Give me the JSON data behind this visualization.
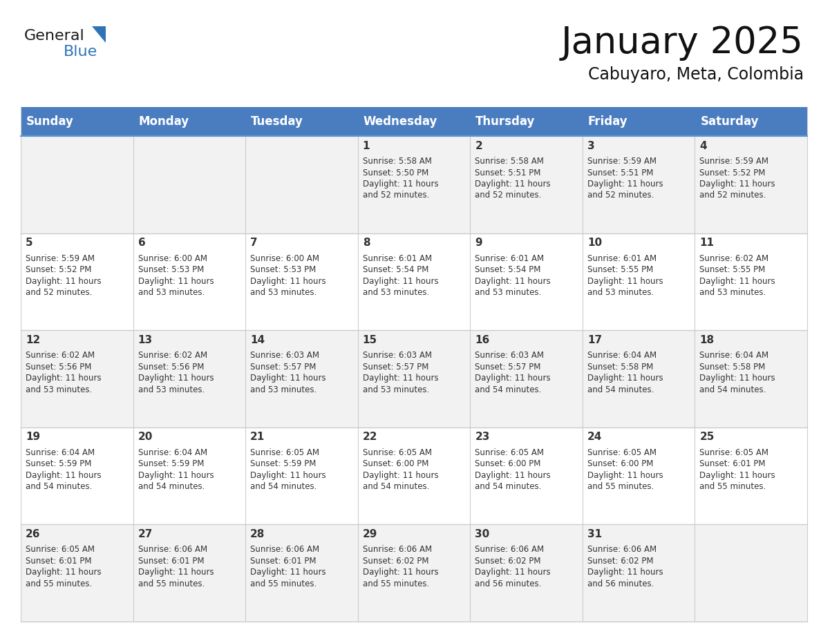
{
  "title": "January 2025",
  "subtitle": "Cabuyaro, Meta, Colombia",
  "header_bg": "#4a7dc0",
  "header_text_color": "#FFFFFF",
  "row_bg_odd": "#F2F2F2",
  "row_bg_even": "#FFFFFF",
  "border_color": "#5B9BD5",
  "grid_color": "#CCCCCC",
  "day_names": [
    "Sunday",
    "Monday",
    "Tuesday",
    "Wednesday",
    "Thursday",
    "Friday",
    "Saturday"
  ],
  "calendar": [
    [
      {
        "day": "",
        "info": ""
      },
      {
        "day": "",
        "info": ""
      },
      {
        "day": "",
        "info": ""
      },
      {
        "day": "1",
        "info": "Sunrise: 5:58 AM\nSunset: 5:50 PM\nDaylight: 11 hours\nand 52 minutes."
      },
      {
        "day": "2",
        "info": "Sunrise: 5:58 AM\nSunset: 5:51 PM\nDaylight: 11 hours\nand 52 minutes."
      },
      {
        "day": "3",
        "info": "Sunrise: 5:59 AM\nSunset: 5:51 PM\nDaylight: 11 hours\nand 52 minutes."
      },
      {
        "day": "4",
        "info": "Sunrise: 5:59 AM\nSunset: 5:52 PM\nDaylight: 11 hours\nand 52 minutes."
      }
    ],
    [
      {
        "day": "5",
        "info": "Sunrise: 5:59 AM\nSunset: 5:52 PM\nDaylight: 11 hours\nand 52 minutes."
      },
      {
        "day": "6",
        "info": "Sunrise: 6:00 AM\nSunset: 5:53 PM\nDaylight: 11 hours\nand 53 minutes."
      },
      {
        "day": "7",
        "info": "Sunrise: 6:00 AM\nSunset: 5:53 PM\nDaylight: 11 hours\nand 53 minutes."
      },
      {
        "day": "8",
        "info": "Sunrise: 6:01 AM\nSunset: 5:54 PM\nDaylight: 11 hours\nand 53 minutes."
      },
      {
        "day": "9",
        "info": "Sunrise: 6:01 AM\nSunset: 5:54 PM\nDaylight: 11 hours\nand 53 minutes."
      },
      {
        "day": "10",
        "info": "Sunrise: 6:01 AM\nSunset: 5:55 PM\nDaylight: 11 hours\nand 53 minutes."
      },
      {
        "day": "11",
        "info": "Sunrise: 6:02 AM\nSunset: 5:55 PM\nDaylight: 11 hours\nand 53 minutes."
      }
    ],
    [
      {
        "day": "12",
        "info": "Sunrise: 6:02 AM\nSunset: 5:56 PM\nDaylight: 11 hours\nand 53 minutes."
      },
      {
        "day": "13",
        "info": "Sunrise: 6:02 AM\nSunset: 5:56 PM\nDaylight: 11 hours\nand 53 minutes."
      },
      {
        "day": "14",
        "info": "Sunrise: 6:03 AM\nSunset: 5:57 PM\nDaylight: 11 hours\nand 53 minutes."
      },
      {
        "day": "15",
        "info": "Sunrise: 6:03 AM\nSunset: 5:57 PM\nDaylight: 11 hours\nand 53 minutes."
      },
      {
        "day": "16",
        "info": "Sunrise: 6:03 AM\nSunset: 5:57 PM\nDaylight: 11 hours\nand 54 minutes."
      },
      {
        "day": "17",
        "info": "Sunrise: 6:04 AM\nSunset: 5:58 PM\nDaylight: 11 hours\nand 54 minutes."
      },
      {
        "day": "18",
        "info": "Sunrise: 6:04 AM\nSunset: 5:58 PM\nDaylight: 11 hours\nand 54 minutes."
      }
    ],
    [
      {
        "day": "19",
        "info": "Sunrise: 6:04 AM\nSunset: 5:59 PM\nDaylight: 11 hours\nand 54 minutes."
      },
      {
        "day": "20",
        "info": "Sunrise: 6:04 AM\nSunset: 5:59 PM\nDaylight: 11 hours\nand 54 minutes."
      },
      {
        "day": "21",
        "info": "Sunrise: 6:05 AM\nSunset: 5:59 PM\nDaylight: 11 hours\nand 54 minutes."
      },
      {
        "day": "22",
        "info": "Sunrise: 6:05 AM\nSunset: 6:00 PM\nDaylight: 11 hours\nand 54 minutes."
      },
      {
        "day": "23",
        "info": "Sunrise: 6:05 AM\nSunset: 6:00 PM\nDaylight: 11 hours\nand 54 minutes."
      },
      {
        "day": "24",
        "info": "Sunrise: 6:05 AM\nSunset: 6:00 PM\nDaylight: 11 hours\nand 55 minutes."
      },
      {
        "day": "25",
        "info": "Sunrise: 6:05 AM\nSunset: 6:01 PM\nDaylight: 11 hours\nand 55 minutes."
      }
    ],
    [
      {
        "day": "26",
        "info": "Sunrise: 6:05 AM\nSunset: 6:01 PM\nDaylight: 11 hours\nand 55 minutes."
      },
      {
        "day": "27",
        "info": "Sunrise: 6:06 AM\nSunset: 6:01 PM\nDaylight: 11 hours\nand 55 minutes."
      },
      {
        "day": "28",
        "info": "Sunrise: 6:06 AM\nSunset: 6:01 PM\nDaylight: 11 hours\nand 55 minutes."
      },
      {
        "day": "29",
        "info": "Sunrise: 6:06 AM\nSunset: 6:02 PM\nDaylight: 11 hours\nand 55 minutes."
      },
      {
        "day": "30",
        "info": "Sunrise: 6:06 AM\nSunset: 6:02 PM\nDaylight: 11 hours\nand 56 minutes."
      },
      {
        "day": "31",
        "info": "Sunrise: 6:06 AM\nSunset: 6:02 PM\nDaylight: 11 hours\nand 56 minutes."
      },
      {
        "day": "",
        "info": ""
      }
    ]
  ],
  "logo_color_general": "#1a1a1a",
  "logo_color_blue": "#2E75B6",
  "logo_triangle_color": "#2E75B6",
  "title_fontsize": 38,
  "subtitle_fontsize": 17,
  "header_fontsize": 12,
  "day_num_fontsize": 11,
  "info_fontsize": 8.5
}
